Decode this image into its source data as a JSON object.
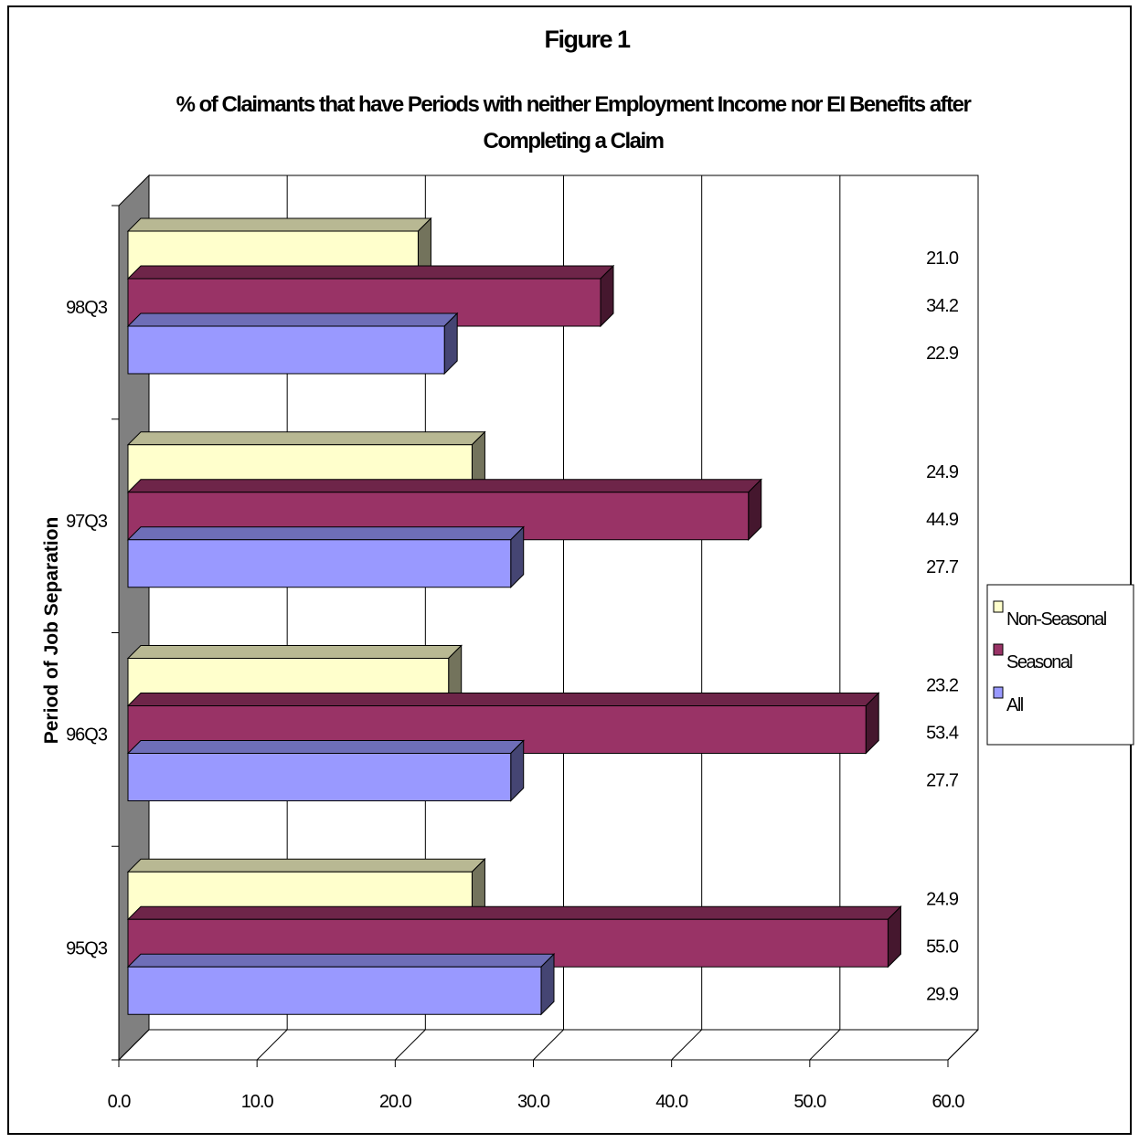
{
  "chart_data": {
    "type": "bar",
    "orientation": "horizontal",
    "three_d": true,
    "figure_label": "Figure 1",
    "title": "% of Claimants that have Periods with neither Employment Income nor EI Benefits after Completing a Claim",
    "title_lines": [
      "% of Claimants that have Periods with neither Employment Income nor EI Benefits after",
      "Completing a Claim"
    ],
    "ylabel": "Period of Job Separation",
    "xlabel": "",
    "categories": [
      "98Q3",
      "97Q3",
      "96Q3",
      "95Q3"
    ],
    "series": [
      {
        "name": "Non-Seasonal",
        "color": "#ffffcc",
        "values": [
          21.0,
          24.9,
          23.2,
          24.9
        ],
        "labels": [
          "21.0",
          "24.9",
          "23.2",
          "24.9"
        ]
      },
      {
        "name": "Seasonal",
        "color": "#993366",
        "values": [
          34.2,
          44.9,
          53.4,
          55.0
        ],
        "labels": [
          "34.2",
          "44.9",
          "53.4",
          "55.0"
        ]
      },
      {
        "name": "All",
        "color": "#9999ff",
        "values": [
          22.9,
          27.7,
          27.7,
          29.9
        ],
        "labels": [
          "22.9",
          "27.7",
          "27.7",
          "29.9"
        ]
      }
    ],
    "xlim": [
      0,
      60
    ],
    "x_ticks": [
      "0.0",
      "10.0",
      "20.0",
      "30.0",
      "40.0",
      "50.0",
      "60.0"
    ],
    "grid": true,
    "legend_position": "right"
  }
}
